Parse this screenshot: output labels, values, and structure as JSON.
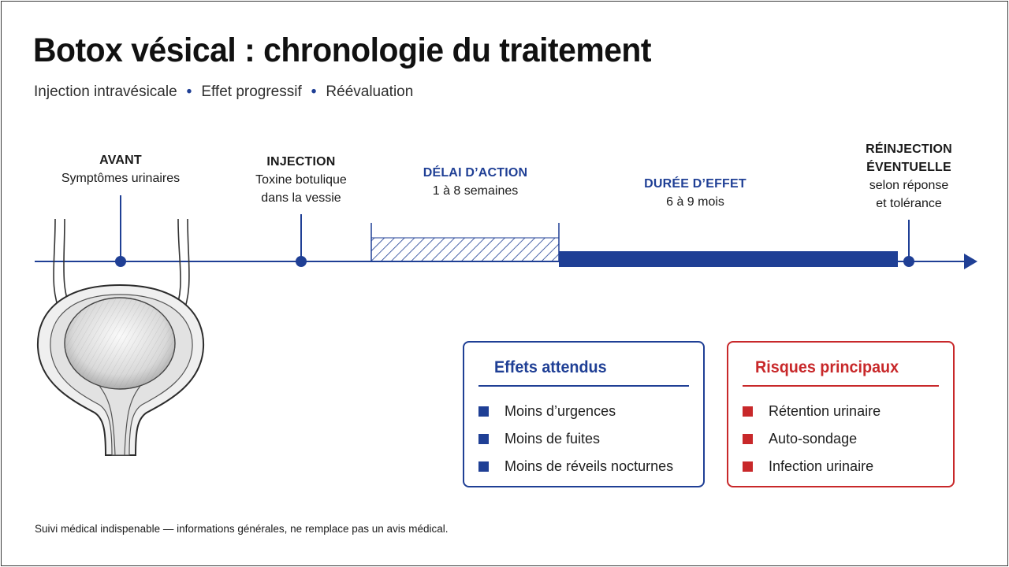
{
  "header": {
    "title": "Botox vésical : chronologie du traitement",
    "subtitle_items": [
      "Injection intravésicale",
      "Effet progressif",
      "Réévaluation"
    ]
  },
  "timeline": {
    "steps": [
      {
        "head": "AVANT",
        "lines": [
          "Symptômes urinaires"
        ]
      },
      {
        "head": "INJECTION",
        "lines": [
          "Toxine botulique",
          "dans la vessie"
        ]
      },
      {
        "head": "DÉLAI D’ACTION",
        "lines": [
          "1 à 8 semaines"
        ]
      },
      {
        "head": "DURÉE D’EFFET",
        "lines": [
          "6 à 9 mois"
        ]
      },
      {
        "head": [
          "RÉINJECTION",
          "ÉVENTUELLE"
        ],
        "lines": [
          "selon réponse",
          "et tolérance"
        ]
      }
    ]
  },
  "cards": {
    "expected": {
      "title": "Effets attendus",
      "items": [
        "Moins d’urgences",
        "Moins de fuites",
        "Moins de réveils nocturnes"
      ]
    },
    "risks": {
      "title": "Risques principaux",
      "items": [
        "Rétention urinaire",
        "Auto-sondage",
        "Infection urinaire"
      ]
    }
  },
  "footer": {
    "note": "Suivi médical indispenable — informations générales, ne remplace pas un avis médical."
  },
  "colors": {
    "accent_blue": "#1f3f95",
    "accent_red": "#c8282a",
    "text": "#1a1a1a"
  },
  "icons": {
    "bladder": "bladder-illustration-icon",
    "timeline_end": "arrow-right-icon",
    "bullet": "square-bullet-icon"
  }
}
